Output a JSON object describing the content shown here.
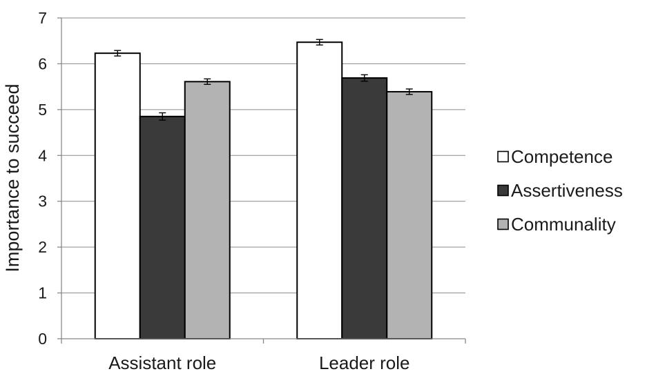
{
  "chart_data": {
    "type": "bar",
    "title": "",
    "xlabel": "",
    "ylabel": "Importance to succeed",
    "ylim": [
      0,
      7
    ],
    "yticks": [
      "0",
      "1",
      "2",
      "3",
      "4",
      "5",
      "6",
      "7"
    ],
    "grid": true,
    "legend_position": "right",
    "categories": [
      "Assistant role",
      "Leader role"
    ],
    "series": [
      {
        "name": "Competence",
        "color": "#ffffff",
        "values": [
          6.23,
          6.47
        ],
        "errors": [
          0.06,
          0.06
        ]
      },
      {
        "name": "Assertiveness",
        "color": "#3a3a3a",
        "values": [
          4.85,
          5.69
        ],
        "errors": [
          0.08,
          0.07
        ]
      },
      {
        "name": "Communality",
        "color": "#b3b3b3",
        "values": [
          5.61,
          5.39
        ],
        "errors": [
          0.06,
          0.06
        ]
      }
    ]
  }
}
